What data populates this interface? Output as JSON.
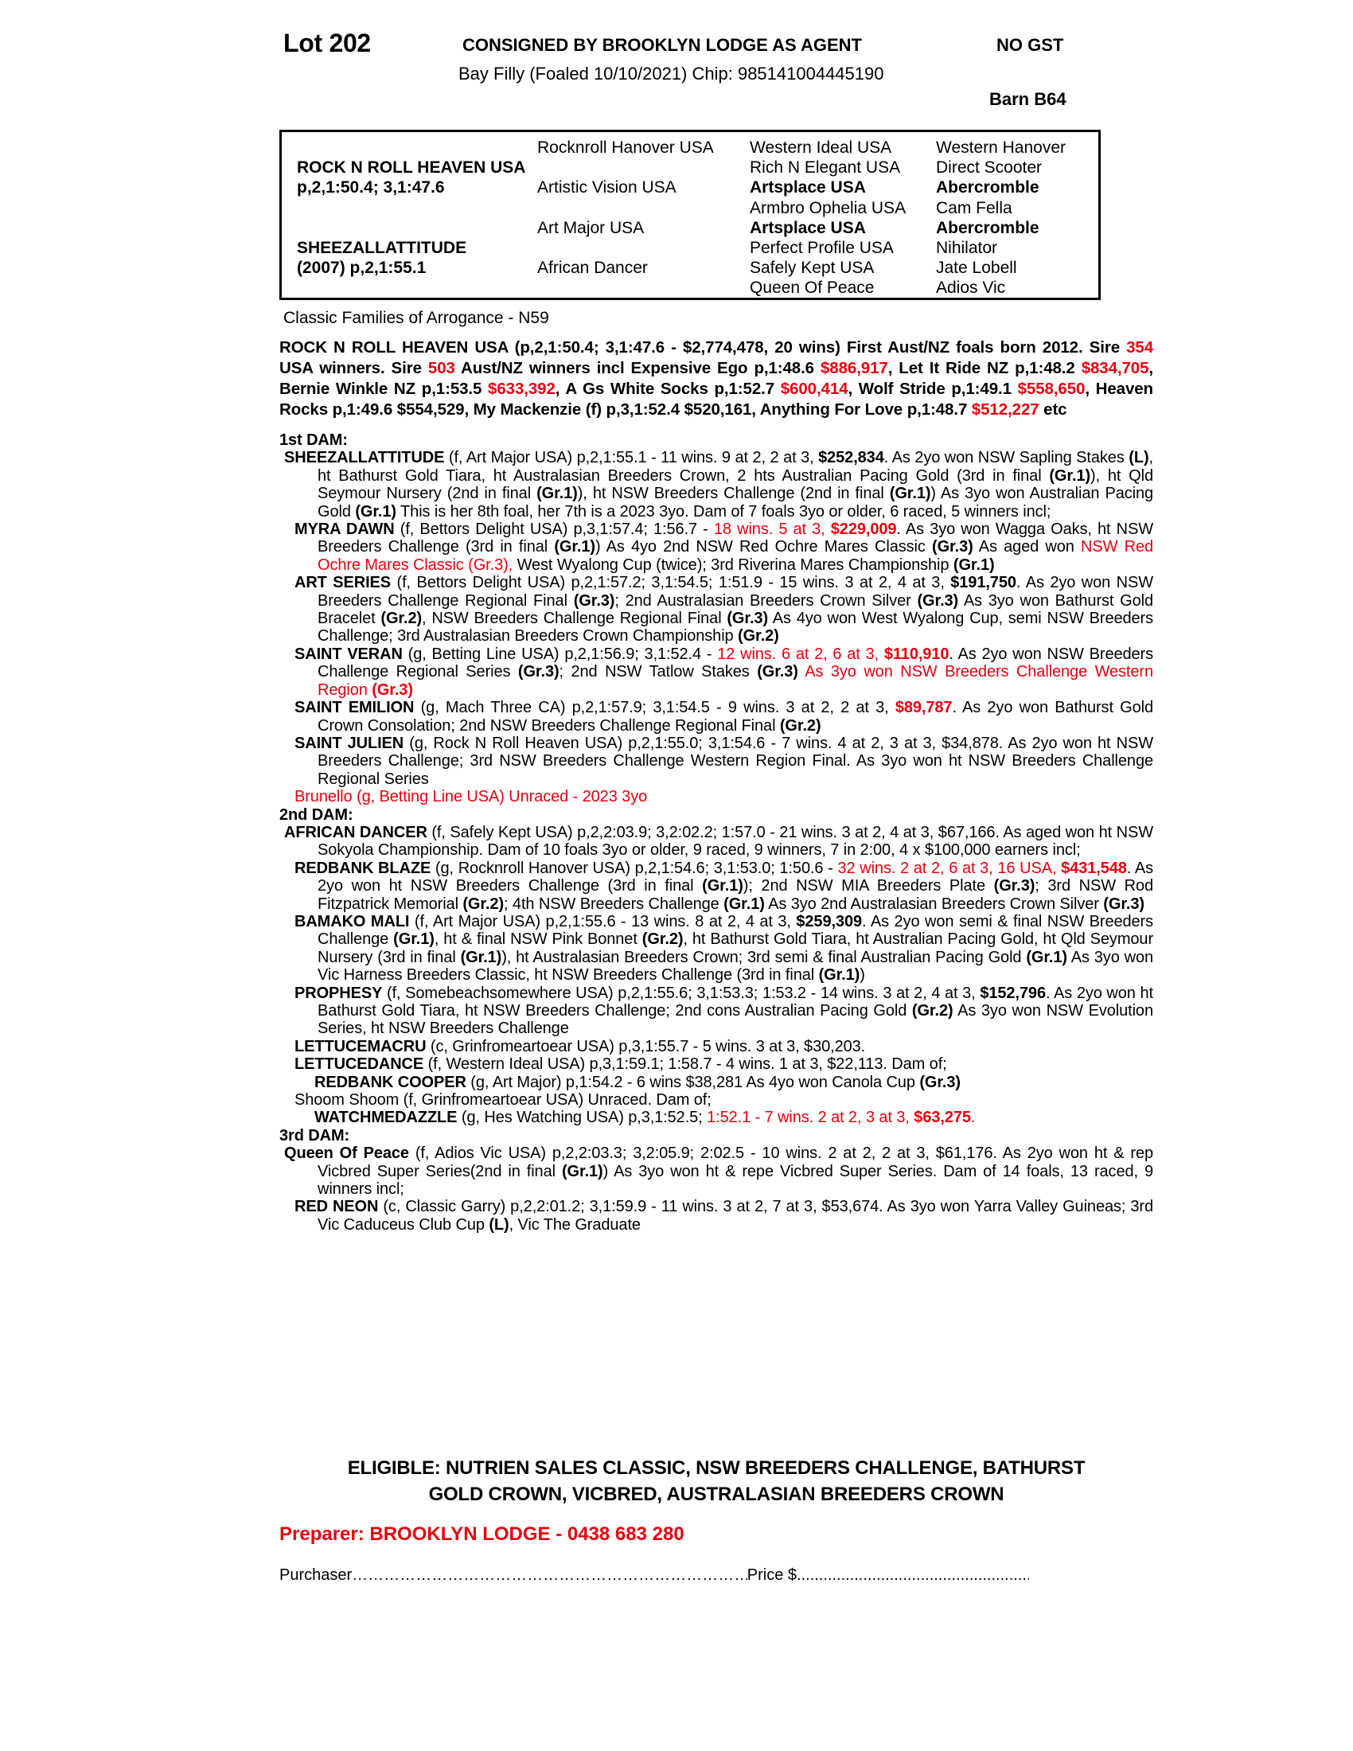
{
  "colors": {
    "red": "#e8000e",
    "text": "#000000",
    "background": "#ffffff"
  },
  "header": {
    "lot": "Lot 202",
    "consigned": "CONSIGNED BY BROOKLYN LODGE AS AGENT",
    "no_gst": "NO GST",
    "description": "Bay Filly (Foaled 10/10/2021) Chip: 985141004445190",
    "barn": "Barn B64"
  },
  "pedigree_table": {
    "rows": [
      [
        "",
        "Rocknroll Hanover USA",
        "Western Ideal USA",
        "Western Hanover"
      ],
      [
        {
          "t": "ROCK N ROLL HEAVEN USA",
          "b": true
        },
        "",
        "Rich N Elegant USA",
        "Direct Scooter"
      ],
      [
        {
          "t": "p,2,1:50.4; 3,1:47.6",
          "b": true
        },
        "Artistic Vision USA",
        {
          "t": "Artsplace USA",
          "b": true
        },
        {
          "t": "Abercromble",
          "b": true
        }
      ],
      [
        "",
        "",
        "Armbro Ophelia USA",
        "Cam Fella"
      ],
      [
        "",
        "Art Major USA",
        {
          "t": "Artsplace USA",
          "b": true
        },
        {
          "t": "Abercromble",
          "b": true
        }
      ],
      [
        {
          "t": "SHEEZALLATTITUDE",
          "b": true
        },
        "",
        "Perfect Profile USA",
        "Nihilator"
      ],
      [
        {
          "t": "(2007) p,2,1:55.1",
          "b": true
        },
        "African Dancer",
        "Safely Kept USA",
        "Jate Lobell"
      ],
      [
        "",
        "",
        "Queen Of Peace",
        "Adios Vic"
      ]
    ]
  },
  "family_note": "Classic Families of Arrogance - N59",
  "paragraphs": [
    {
      "id": "sire-summary",
      "kind": "sire",
      "segs": [
        {
          "t": "ROCK N ROLL HEAVEN USA (p,2,1:50.4; 3,1:47.6 - $2,774,478, 20 wins) First Aust/NZ foals born 2012. Sire ",
          "b": true
        },
        {
          "t": "354",
          "b": true,
          "r": true
        },
        {
          "t": " USA winners. Sire ",
          "b": true
        },
        {
          "t": "503",
          "b": true,
          "r": true
        },
        {
          "t": " Aust/NZ winners incl Expensive Ego p,1:48.6 ",
          "b": true
        },
        {
          "t": "$886,917",
          "b": true,
          "r": true
        },
        {
          "t": ", Let It Ride NZ p,1:48.2 ",
          "b": true
        },
        {
          "t": "$834,705",
          "b": true,
          "r": true
        },
        {
          "t": ", Bernie Winkle NZ p,1:53.5 ",
          "b": true
        },
        {
          "t": "$633,392",
          "b": true,
          "r": true
        },
        {
          "t": ", A Gs White Socks p,1:52.7 ",
          "b": true
        },
        {
          "t": "$600,414",
          "b": true,
          "r": true
        },
        {
          "t": ", Wolf Stride p,1:49.1 ",
          "b": true
        },
        {
          "t": "$558,650",
          "b": true,
          "r": true
        },
        {
          "t": ", Heaven Rocks p,1:49.6 $554,529, My Mackenzie (f) p,3,1:52.4 $520,161, Anything For Love p,1:48.7 ",
          "b": true
        },
        {
          "t": "$512,227",
          "b": true,
          "r": true
        },
        {
          "t": " etc",
          "b": true
        }
      ]
    },
    {
      "id": "dam1-heading",
      "kind": "heading",
      "text": "1st DAM:"
    },
    {
      "id": "entry-sheezallattitude",
      "kind": "entry",
      "indent": 0,
      "segs": [
        {
          "t": "SHEEZALLATTITUDE",
          "b": true
        },
        " (f, Art Major USA) p,2,1:55.1 - 11 wins. 9 at 2, 2 at 3, ",
        {
          "t": "$252,834",
          "b": true
        },
        ". As 2yo won NSW Sapling Stakes ",
        {
          "t": "(L)",
          "b": true
        },
        ", ht Bathurst Gold Tiara, ht Australasian Breeders Crown, 2 hts Australian Pacing Gold (3rd in final ",
        {
          "t": "(Gr.1)",
          "b": true
        },
        "), ht Qld Seymour Nursery (2nd in final ",
        {
          "t": "(Gr.1)",
          "b": true
        },
        "), ht NSW Breeders Challenge (2nd in final ",
        {
          "t": "(Gr.1)",
          "b": true
        },
        ") As 3yo won Australian Pacing Gold ",
        {
          "t": "(Gr.1)",
          "b": true
        },
        " This is her 8th foal, her 7th is a 2023 3yo. Dam of 7 foals 3yo or older, 6 raced, 5 winners incl;"
      ]
    },
    {
      "id": "entry-myra-dawn",
      "kind": "entry",
      "indent": 1,
      "segs": [
        {
          "t": "MYRA DAWN",
          "b": true
        },
        " (f, Bettors Delight USA) p,3,1:57.4; 1:56.7 - ",
        {
          "t": "18 wins. 5 at 3, ",
          "r": true
        },
        {
          "t": "$229,009",
          "b": true,
          "r": true
        },
        ". As 3yo won Wagga Oaks, ht NSW Breeders Challenge (3rd in final ",
        {
          "t": "(Gr.1)",
          "b": true
        },
        ") As 4yo 2nd NSW Red Ochre Mares Classic ",
        {
          "t": "(Gr.3)",
          "b": true
        },
        " As aged won ",
        {
          "t": "NSW Red Ochre Mares Classic (Gr.3),",
          "r": true
        },
        " West Wyalong Cup (twice); 3rd Riverina Mares Championship ",
        {
          "t": "(Gr.1)",
          "b": true
        }
      ]
    },
    {
      "id": "entry-art-series",
      "kind": "entry",
      "indent": 1,
      "segs": [
        {
          "t": "ART SERIES",
          "b": true
        },
        " (f, Bettors Delight USA) p,2,1:57.2; 3,1:54.5; 1:51.9 - 15 wins. 3 at 2, 4 at 3, ",
        {
          "t": "$191,750",
          "b": true
        },
        ". As 2yo won NSW Breeders Challenge Regional Final ",
        {
          "t": "(Gr.3)",
          "b": true
        },
        "; 2nd Australasian Breeders Crown Silver ",
        {
          "t": "(Gr.3)",
          "b": true
        },
        " As 3yo won Bathurst Gold Bracelet ",
        {
          "t": "(Gr.2)",
          "b": true
        },
        ", NSW Breeders Challenge Regional Final ",
        {
          "t": "(Gr.3)",
          "b": true
        },
        " As 4yo won West Wyalong Cup, semi NSW Breeders Challenge; 3rd Australasian Breeders Crown Championship ",
        {
          "t": "(Gr.2)",
          "b": true
        }
      ]
    },
    {
      "id": "entry-saint-veran",
      "kind": "entry",
      "indent": 1,
      "segs": [
        {
          "t": "SAINT VERAN",
          "b": true
        },
        " (g, Betting Line USA) p,2,1:56.9; 3,1:52.4 - ",
        {
          "t": "12 wins. 6 at 2, 6 at 3, ",
          "r": true
        },
        {
          "t": "$110,910",
          "b": true,
          "r": true
        },
        ". As 2yo won NSW Breeders Challenge Regional Series ",
        {
          "t": "(Gr.3)",
          "b": true
        },
        "; 2nd NSW Tatlow Stakes ",
        {
          "t": "(Gr.3)",
          "b": true
        },
        " ",
        {
          "t": "As 3yo won NSW Breeders Challenge Western Region ",
          "r": true
        },
        {
          "t": "(Gr.3)",
          "b": true,
          "r": true
        }
      ]
    },
    {
      "id": "entry-saint-emilion",
      "kind": "entry",
      "indent": 1,
      "segs": [
        {
          "t": "SAINT EMILION",
          "b": true
        },
        " (g, Mach Three CA) p,2,1:57.9; 3,1:54.5 - 9 wins. 3 at 2, 2 at 3, ",
        {
          "t": "$89,787",
          "b": true,
          "r": true
        },
        ". As 2yo won Bathurst Gold Crown Consolation; 2nd NSW Breeders Challenge Regional Final ",
        {
          "t": "(Gr.2)",
          "b": true
        }
      ]
    },
    {
      "id": "entry-saint-julien",
      "kind": "entry",
      "indent": 1,
      "segs": [
        {
          "t": "SAINT JULIEN",
          "b": true
        },
        " (g, Rock N Roll Heaven USA) p,2,1:55.0; 3,1:54.6 - 7 wins. 4 at 2, 3 at 3, $34,878. As 2yo won ht NSW Breeders Challenge; 3rd NSW Breeders Challenge Western Region Final. As 3yo won ht NSW Breeders Challenge Regional Series"
      ]
    },
    {
      "id": "entry-brunello",
      "kind": "entry",
      "indent": 1,
      "segs": [
        {
          "t": "Brunello (g, Betting Line USA) Unraced - 2023 3yo",
          "r": true
        }
      ]
    },
    {
      "id": "dam2-heading",
      "kind": "heading",
      "text": "2nd DAM:"
    },
    {
      "id": "entry-african-dancer",
      "kind": "entry",
      "indent": 0,
      "segs": [
        {
          "t": "AFRICAN DANCER",
          "b": true
        },
        " (f, Safely Kept USA) p,2,2:03.9; 3,2:02.2; 1:57.0 - 21 wins. 3 at 2, 4 at 3, $67,166. As aged won ht NSW Sokyola Championship. Dam of 10 foals 3yo or older, 9 raced, 9 winners, 7 in 2:00, 4 x $100,000 earners incl;"
      ]
    },
    {
      "id": "entry-redbank-blaze",
      "kind": "entry",
      "indent": 1,
      "segs": [
        {
          "t": "REDBANK BLAZE",
          "b": true
        },
        " (g, Rocknroll Hanover USA) p,2,1:54.6; 3,1:53.0; 1:50.6 - ",
        {
          "t": "32 wins. 2 at 2, 6 at 3, 16 USA, ",
          "r": true
        },
        {
          "t": "$431,548",
          "b": true,
          "r": true
        },
        ". As 2yo won ht NSW Breeders Challenge (3rd in final ",
        {
          "t": "(Gr.1)",
          "b": true
        },
        "); 2nd NSW MIA Breeders Plate ",
        {
          "t": "(Gr.3)",
          "b": true
        },
        "; 3rd NSW Rod Fitzpatrick Memorial ",
        {
          "t": "(Gr.2)",
          "b": true
        },
        "; 4th NSW Breeders Challenge ",
        {
          "t": "(Gr.1)",
          "b": true
        },
        " As 3yo 2nd Australasian Breeders Crown Silver ",
        {
          "t": "(Gr.3)",
          "b": true
        }
      ]
    },
    {
      "id": "entry-bamako-mali",
      "kind": "entry",
      "indent": 1,
      "segs": [
        {
          "t": "BAMAKO MALI",
          "b": true
        },
        " (f, Art Major USA) p,2,1:55.6 - 13 wins. 8 at 2, 4 at 3, ",
        {
          "t": "$259,309",
          "b": true
        },
        ". As 2yo won semi & final NSW Breeders Challenge ",
        {
          "t": "(Gr.1)",
          "b": true
        },
        ", ht & final NSW Pink Bonnet ",
        {
          "t": "(Gr.2)",
          "b": true
        },
        ", ht Bathurst Gold Tiara, ht Australian Pacing Gold, ht Qld Seymour Nursery (3rd in final ",
        {
          "t": "(Gr.1)",
          "b": true
        },
        "), ht Australasian Breeders Crown; 3rd semi & final Australian Pacing Gold ",
        {
          "t": "(Gr.1)",
          "b": true
        },
        " As 3yo won Vic Harness Breeders Classic, ht NSW Breeders Challenge (3rd in final ",
        {
          "t": "(Gr.1)",
          "b": true
        },
        ")"
      ]
    },
    {
      "id": "entry-prophesy",
      "kind": "entry",
      "indent": 1,
      "segs": [
        {
          "t": "PROPHESY",
          "b": true
        },
        " (f, Somebeachsomewhere USA) p,2,1:55.6; 3,1:53.3; 1:53.2 - 14 wins. 3 at 2, 4 at 3, ",
        {
          "t": "$152,796",
          "b": true
        },
        ". As 2yo won ht Bathurst Gold Tiara, ht NSW Breeders Challenge; 2nd cons Australian Pacing Gold ",
        {
          "t": "(Gr.2)",
          "b": true
        },
        " As 3yo won NSW Evolution Series, ht NSW Breeders Challenge"
      ]
    },
    {
      "id": "entry-lettucemacru",
      "kind": "entry",
      "indent": 1,
      "segs": [
        {
          "t": "LETTUCEMACRU",
          "b": true
        },
        " (c, Grinfromeartoear USA) p,3,1:55.7 - 5 wins. 3 at 3, $30,203."
      ]
    },
    {
      "id": "entry-lettucedance",
      "kind": "entry",
      "indent": 1,
      "segs": [
        {
          "t": "LETTUCEDANCE",
          "b": true
        },
        " (f, Western Ideal USA) p,3,1:59.1; 1:58.7 - 4 wins. 1 at 3, $22,113. Dam of;"
      ]
    },
    {
      "id": "entry-redbank-cooper",
      "kind": "entry",
      "indent": 2,
      "segs": [
        {
          "t": "REDBANK COOPER",
          "b": true
        },
        " (g, Art Major) p,1:54.2 - 6 wins $38,281 As 4yo won Canola Cup ",
        {
          "t": "(Gr.3)",
          "b": true
        }
      ]
    },
    {
      "id": "entry-shoom-shoom",
      "kind": "entry",
      "indent": 1,
      "segs": [
        "Shoom Shoom (f, Grinfromeartoear USA) Unraced. Dam of;"
      ]
    },
    {
      "id": "entry-watchmedazzle",
      "kind": "entry",
      "indent": 2,
      "segs": [
        {
          "t": "WATCHMEDAZZLE",
          "b": true
        },
        " (g, Hes Watching USA) p,3,1:52.5; ",
        {
          "t": "1:52.1 - 7 wins. 2 at 2, 3 at 3, ",
          "r": true
        },
        {
          "t": "$63,275",
          "b": true,
          "r": true
        },
        {
          "t": ".",
          "r": true
        }
      ]
    },
    {
      "id": "dam3-heading",
      "kind": "heading",
      "text": "3rd DAM:"
    },
    {
      "id": "entry-queen-of-peace",
      "kind": "entry",
      "indent": 0,
      "segs": [
        {
          "t": "Queen Of Peace",
          "b": true
        },
        " (f, Adios Vic USA) p,2,2:03.3; 3,2:05.9; 2:02.5 - 10 wins. 2 at 2, 2 at 3, $61,176. As 2yo won ht & rep Vicbred Super Series(2nd in final ",
        {
          "t": "(Gr.1)",
          "b": true
        },
        ") As 3yo won ht & repe Vicbred Super Series. Dam of 14 foals, 13 raced, 9 winners incl;"
      ]
    },
    {
      "id": "entry-red-neon",
      "kind": "entry",
      "indent": 1,
      "segs": [
        {
          "t": "RED NEON",
          "b": true
        },
        " (c, Classic Garry) p,2,2:01.2; 3,1:59.9 - 11 wins. 3 at 2, 7 at 3, $53,674. As 3yo won Yarra Valley Guineas; 3rd Vic Caduceus Club Cup ",
        {
          "t": "(L)",
          "b": true
        },
        ", Vic The Graduate"
      ]
    }
  ],
  "footer": {
    "eligible": "ELIGIBLE: NUTRIEN SALES CLASSIC, NSW BREEDERS CHALLENGE, BATHURST GOLD CROWN, VICBRED, AUSTRALASIAN BREEDERS CROWN",
    "preparer": "Preparer: BROOKLYN LODGE - 0438 683 280",
    "purchaser_label": "Purchaser",
    "purchaser_dots": "……………………………………………………………………………………..",
    "price_label": "Price $",
    "price_dots": "................................................................"
  }
}
